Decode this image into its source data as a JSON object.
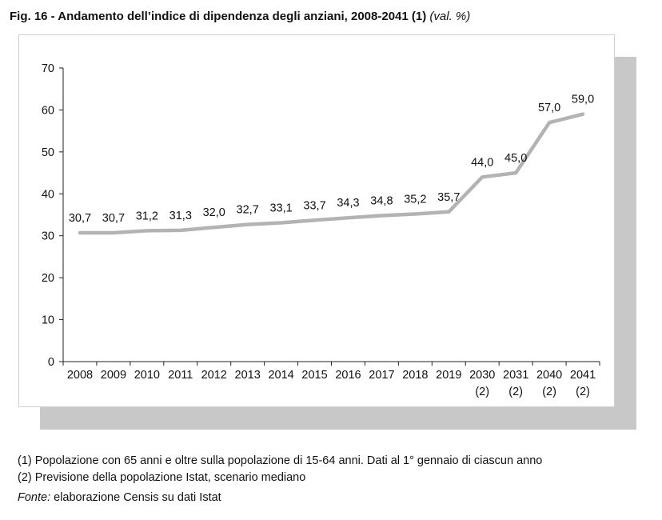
{
  "figure": {
    "title": "Fig. 16 - Andamento dell’indice di dipendenza degli anziani, 2008-2041 (1)",
    "unit": "(val. %)"
  },
  "chart_data": {
    "type": "line",
    "categories": [
      "2008",
      "2009",
      "2010",
      "2011",
      "2012",
      "2013",
      "2014",
      "2015",
      "2016",
      "2017",
      "2018",
      "2019",
      "2030",
      "2031",
      "2040",
      "2041"
    ],
    "category_notes": [
      "",
      "",
      "",
      "",
      "",
      "",
      "",
      "",
      "",
      "",
      "",
      "",
      "(2)",
      "(2)",
      "(2)",
      "(2)"
    ],
    "values": [
      30.7,
      30.7,
      31.2,
      31.3,
      32.0,
      32.7,
      33.1,
      33.7,
      34.3,
      34.8,
      35.2,
      35.7,
      44.0,
      45.0,
      57.0,
      59.0
    ],
    "value_labels": [
      "30,7",
      "30,7",
      "31,2",
      "31,3",
      "32,0",
      "32,7",
      "33,1",
      "33,7",
      "34,3",
      "34,8",
      "35,2",
      "35,7",
      "44,0",
      "45,0",
      "57,0",
      "59,0"
    ],
    "ylim": [
      0,
      70
    ],
    "yticks": [
      0,
      10,
      20,
      30,
      40,
      50,
      60,
      70
    ],
    "grid": false,
    "line_color": "#b3b3b3"
  },
  "notes": [
    "(1) Popolazione con 65 anni e oltre sulla popolazione di 15-64 anni. Dati al 1° gennaio di ciascun anno",
    "(2) Previsione della popolazione Istat, scenario mediano"
  ],
  "source": {
    "label": "Fonte:",
    "text": "elaborazione Censis su dati Istat"
  }
}
